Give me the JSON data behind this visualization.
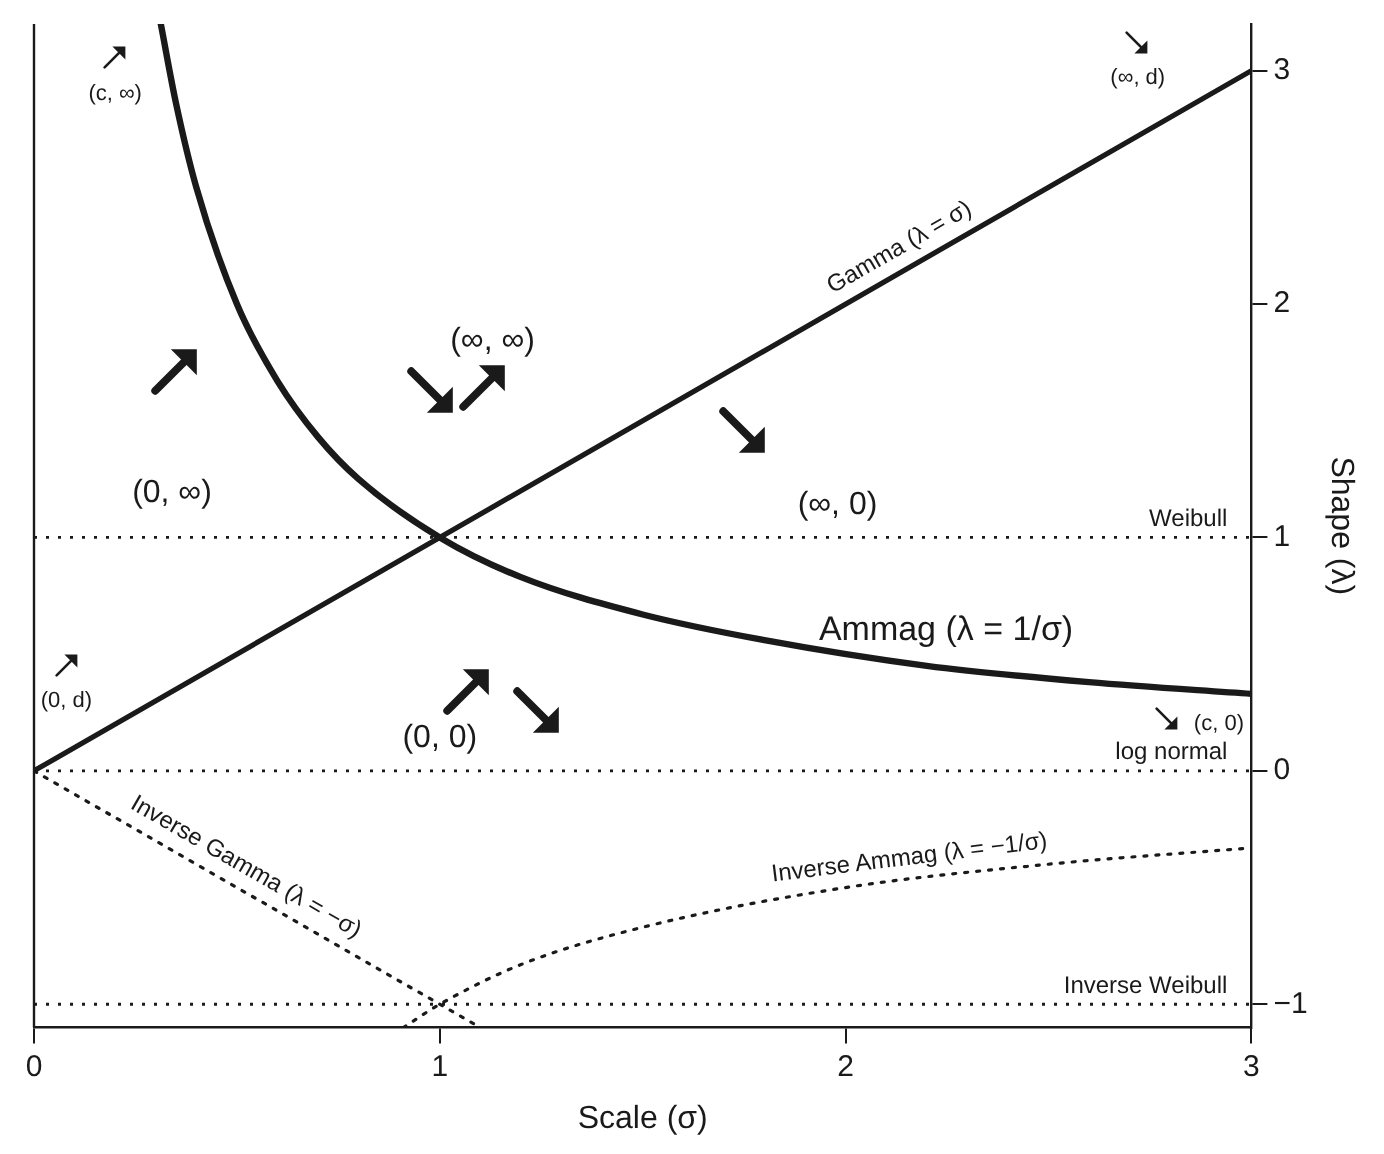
{
  "chart_data": {
    "type": "line",
    "xlabel": "Scale (σ)",
    "ylabel": "Shape (λ)",
    "xlim": [
      0,
      3
    ],
    "ylim": [
      -1.1,
      3.2
    ],
    "xticks": [
      0,
      1,
      2,
      3
    ],
    "yticks": [
      -1,
      0,
      1,
      2,
      3
    ],
    "grid": false,
    "legend": false,
    "marker": "none",
    "series": [
      {
        "name": "Gamma (λ = σ)",
        "color": "#1a1a1a",
        "line_style": "solid",
        "x": [
          0,
          3
        ],
        "values": [
          0,
          3
        ]
      },
      {
        "name": "Ammag (λ = 1/σ)",
        "color": "#1a1a1a",
        "line_style": "solid",
        "x": [
          0.3125,
          0.35,
          0.4,
          0.5,
          0.6,
          0.7,
          0.8,
          1,
          1.2,
          1.5,
          1.8,
          2.2,
          2.6,
          3
        ],
        "values": [
          3.2,
          2.86,
          2.5,
          2,
          1.67,
          1.43,
          1.25,
          1,
          0.83,
          0.67,
          0.56,
          0.45,
          0.38,
          0.33
        ]
      },
      {
        "name": "Inverse Gamma (λ = −σ)",
        "color": "#1a1a1a",
        "line_style": "dotted",
        "x": [
          0,
          1.1
        ],
        "values": [
          0,
          -1.1
        ]
      },
      {
        "name": "Inverse Ammag (λ = −1/σ)",
        "color": "#1a1a1a",
        "line_style": "dotted",
        "x": [
          0.91,
          1,
          1.2,
          1.5,
          2,
          2.5,
          3
        ],
        "values": [
          -1.1,
          -1,
          -0.83,
          -0.67,
          -0.5,
          -0.4,
          -0.33
        ]
      }
    ],
    "ref_lines": [
      {
        "axis": "y",
        "value": 1,
        "label": "Weibull",
        "line_style": "dotted"
      },
      {
        "axis": "y",
        "value": 0,
        "label": "log normal",
        "line_style": "dotted"
      },
      {
        "axis": "y",
        "value": -1,
        "label": "Inverse Weibull",
        "line_style": "dotted"
      }
    ],
    "annotations": [
      "(c, ∞)",
      "(∞, d)",
      "(0, ∞)",
      "(∞, ∞)",
      "(∞, 0)",
      "(0, d)",
      "(0, 0)",
      "(c, 0)"
    ]
  }
}
